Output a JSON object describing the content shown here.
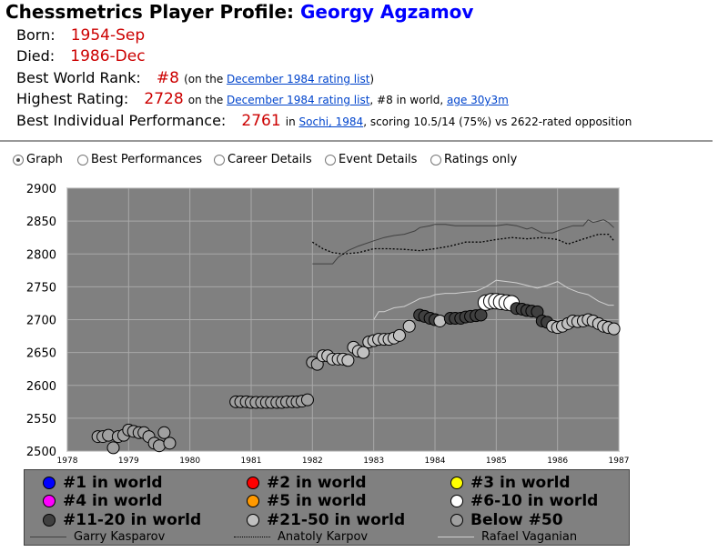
{
  "header": {
    "title_prefix": "Chessmetrics Player Profile: ",
    "player_name": "Georgy Agzamov"
  },
  "facts": {
    "born_label": "Born:",
    "born_value": "1954-Sep",
    "died_label": "Died:",
    "died_value": "1986-Dec",
    "best_rank_label": "Best World Rank:",
    "best_rank_value": "#8",
    "best_rank_note_pre": "(on the ",
    "best_rank_link": "December 1984 rating list",
    "best_rank_note_post": ")",
    "highest_label": "Highest Rating:",
    "highest_value": "2728",
    "highest_note_pre": "on the ",
    "highest_link": "December 1984 rating list",
    "highest_note_mid": ", #8 in world, ",
    "highest_age_link": "age 30y3m",
    "perf_label": "Best Individual Performance:",
    "perf_value": "2761",
    "perf_note_pre": "in ",
    "perf_link": "Sochi, 1984",
    "perf_note_post": ", scoring 10.5/14 (75%) vs 2622-rated opposition"
  },
  "view_options": [
    {
      "label": "Graph",
      "checked": true
    },
    {
      "label": "Best Performances",
      "checked": false
    },
    {
      "label": "Career Details",
      "checked": false
    },
    {
      "label": "Event Details",
      "checked": false
    },
    {
      "label": "Ratings only",
      "checked": false
    }
  ],
  "legend": {
    "rank_items": [
      {
        "label": "#1 in world",
        "color": "#0000ff"
      },
      {
        "label": "#2 in world",
        "color": "#ff0000"
      },
      {
        "label": "#3 in world",
        "color": "#ffff00"
      },
      {
        "label": "#4 in world",
        "color": "#ff00ff"
      },
      {
        "label": "#5 in world",
        "color": "#ff9900"
      },
      {
        "label": "#6-10 in world",
        "color": "#ffffff"
      },
      {
        "label": "#11-20 in world",
        "color": "#404040"
      },
      {
        "label": "#21-50 in world",
        "color": "#c0c0c0"
      },
      {
        "label": "Below #50",
        "color": "#a0a0a0"
      }
    ],
    "line_items": [
      {
        "label": "Garry Kasparov",
        "style": "solid",
        "color": "#404040"
      },
      {
        "label": "Anatoly Karpov",
        "style": "dotted",
        "color": "#000000"
      },
      {
        "label": "Rafael Vaganian",
        "style": "solid",
        "color": "#d0d0d0"
      }
    ]
  },
  "chart_data": {
    "type": "scatter",
    "background": "#808080",
    "grid": true,
    "xlim": [
      1978,
      1987
    ],
    "ylim": [
      2500,
      2900
    ],
    "x_ticks": [
      1978,
      1979,
      1980,
      1981,
      1982,
      1983,
      1984,
      1985,
      1986,
      1987
    ],
    "y_ticks": [
      2500,
      2550,
      2600,
      2650,
      2700,
      2750,
      2800,
      2850,
      2900
    ],
    "points": [
      {
        "x": 1978.5,
        "y": 2522,
        "c": "#a0a0a0"
      },
      {
        "x": 1978.58,
        "y": 2522,
        "c": "#a0a0a0"
      },
      {
        "x": 1978.67,
        "y": 2524,
        "c": "#a0a0a0"
      },
      {
        "x": 1978.75,
        "y": 2505,
        "c": "#a0a0a0"
      },
      {
        "x": 1978.83,
        "y": 2522,
        "c": "#a0a0a0"
      },
      {
        "x": 1978.92,
        "y": 2524,
        "c": "#a0a0a0"
      },
      {
        "x": 1979.0,
        "y": 2532,
        "c": "#a0a0a0"
      },
      {
        "x": 1979.08,
        "y": 2530,
        "c": "#a0a0a0"
      },
      {
        "x": 1979.17,
        "y": 2528,
        "c": "#a0a0a0"
      },
      {
        "x": 1979.25,
        "y": 2528,
        "c": "#a0a0a0"
      },
      {
        "x": 1979.33,
        "y": 2522,
        "c": "#a0a0a0"
      },
      {
        "x": 1979.42,
        "y": 2512,
        "c": "#a0a0a0"
      },
      {
        "x": 1979.5,
        "y": 2508,
        "c": "#a0a0a0"
      },
      {
        "x": 1979.58,
        "y": 2528,
        "c": "#a0a0a0"
      },
      {
        "x": 1979.67,
        "y": 2512,
        "c": "#a0a0a0"
      },
      {
        "x": 1980.75,
        "y": 2575,
        "c": "#a0a0a0"
      },
      {
        "x": 1980.83,
        "y": 2575,
        "c": "#a0a0a0"
      },
      {
        "x": 1980.92,
        "y": 2575,
        "c": "#a0a0a0"
      },
      {
        "x": 1981.0,
        "y": 2574,
        "c": "#a0a0a0"
      },
      {
        "x": 1981.08,
        "y": 2574,
        "c": "#a0a0a0"
      },
      {
        "x": 1981.17,
        "y": 2574,
        "c": "#a0a0a0"
      },
      {
        "x": 1981.25,
        "y": 2574,
        "c": "#a0a0a0"
      },
      {
        "x": 1981.33,
        "y": 2574,
        "c": "#a0a0a0"
      },
      {
        "x": 1981.42,
        "y": 2574,
        "c": "#a0a0a0"
      },
      {
        "x": 1981.5,
        "y": 2574,
        "c": "#a0a0a0"
      },
      {
        "x": 1981.58,
        "y": 2575,
        "c": "#a0a0a0"
      },
      {
        "x": 1981.67,
        "y": 2575,
        "c": "#a0a0a0"
      },
      {
        "x": 1981.75,
        "y": 2575,
        "c": "#a0a0a0"
      },
      {
        "x": 1981.83,
        "y": 2576,
        "c": "#a0a0a0"
      },
      {
        "x": 1981.92,
        "y": 2578,
        "c": "#a0a0a0"
      },
      {
        "x": 1982.0,
        "y": 2635,
        "c": "#a0a0a0"
      },
      {
        "x": 1982.08,
        "y": 2632,
        "c": "#a0a0a0"
      },
      {
        "x": 1982.17,
        "y": 2645,
        "c": "#c0c0c0"
      },
      {
        "x": 1982.25,
        "y": 2645,
        "c": "#c0c0c0"
      },
      {
        "x": 1982.33,
        "y": 2640,
        "c": "#c0c0c0"
      },
      {
        "x": 1982.42,
        "y": 2640,
        "c": "#c0c0c0"
      },
      {
        "x": 1982.5,
        "y": 2640,
        "c": "#c0c0c0"
      },
      {
        "x": 1982.58,
        "y": 2638,
        "c": "#c0c0c0"
      },
      {
        "x": 1982.67,
        "y": 2658,
        "c": "#c0c0c0"
      },
      {
        "x": 1982.75,
        "y": 2652,
        "c": "#c0c0c0"
      },
      {
        "x": 1982.83,
        "y": 2650,
        "c": "#c0c0c0"
      },
      {
        "x": 1982.92,
        "y": 2666,
        "c": "#c0c0c0"
      },
      {
        "x": 1983.0,
        "y": 2668,
        "c": "#c0c0c0"
      },
      {
        "x": 1983.08,
        "y": 2670,
        "c": "#c0c0c0"
      },
      {
        "x": 1983.17,
        "y": 2670,
        "c": "#c0c0c0"
      },
      {
        "x": 1983.25,
        "y": 2670,
        "c": "#c0c0c0"
      },
      {
        "x": 1983.33,
        "y": 2672,
        "c": "#c0c0c0"
      },
      {
        "x": 1983.42,
        "y": 2676,
        "c": "#c0c0c0"
      },
      {
        "x": 1983.58,
        "y": 2690,
        "c": "#c0c0c0"
      },
      {
        "x": 1983.75,
        "y": 2707,
        "c": "#404040"
      },
      {
        "x": 1983.83,
        "y": 2705,
        "c": "#404040"
      },
      {
        "x": 1983.92,
        "y": 2702,
        "c": "#404040"
      },
      {
        "x": 1984.0,
        "y": 2700,
        "c": "#404040"
      },
      {
        "x": 1984.08,
        "y": 2698,
        "c": "#c0c0c0"
      },
      {
        "x": 1984.25,
        "y": 2702,
        "c": "#404040"
      },
      {
        "x": 1984.33,
        "y": 2702,
        "c": "#404040"
      },
      {
        "x": 1984.42,
        "y": 2702,
        "c": "#404040"
      },
      {
        "x": 1984.5,
        "y": 2704,
        "c": "#404040"
      },
      {
        "x": 1984.58,
        "y": 2705,
        "c": "#404040"
      },
      {
        "x": 1984.67,
        "y": 2706,
        "c": "#404040"
      },
      {
        "x": 1984.75,
        "y": 2707,
        "c": "#404040"
      },
      {
        "x": 1984.83,
        "y": 2726,
        "c": "#ffffff"
      },
      {
        "x": 1984.92,
        "y": 2728,
        "c": "#ffffff"
      },
      {
        "x": 1985.0,
        "y": 2728,
        "c": "#ffffff"
      },
      {
        "x": 1985.08,
        "y": 2727,
        "c": "#ffffff"
      },
      {
        "x": 1985.17,
        "y": 2726,
        "c": "#ffffff"
      },
      {
        "x": 1985.25,
        "y": 2725,
        "c": "#ffffff"
      },
      {
        "x": 1985.33,
        "y": 2717,
        "c": "#404040"
      },
      {
        "x": 1985.42,
        "y": 2716,
        "c": "#404040"
      },
      {
        "x": 1985.5,
        "y": 2714,
        "c": "#404040"
      },
      {
        "x": 1985.58,
        "y": 2713,
        "c": "#404040"
      },
      {
        "x": 1985.67,
        "y": 2712,
        "c": "#404040"
      },
      {
        "x": 1985.75,
        "y": 2698,
        "c": "#404040"
      },
      {
        "x": 1985.83,
        "y": 2696,
        "c": "#404040"
      },
      {
        "x": 1985.92,
        "y": 2690,
        "c": "#c0c0c0"
      },
      {
        "x": 1986.0,
        "y": 2688,
        "c": "#c0c0c0"
      },
      {
        "x": 1986.08,
        "y": 2690,
        "c": "#c0c0c0"
      },
      {
        "x": 1986.17,
        "y": 2694,
        "c": "#c0c0c0"
      },
      {
        "x": 1986.25,
        "y": 2698,
        "c": "#c0c0c0"
      },
      {
        "x": 1986.33,
        "y": 2697,
        "c": "#c0c0c0"
      },
      {
        "x": 1986.42,
        "y": 2698,
        "c": "#c0c0c0"
      },
      {
        "x": 1986.5,
        "y": 2700,
        "c": "#c0c0c0"
      },
      {
        "x": 1986.58,
        "y": 2698,
        "c": "#c0c0c0"
      },
      {
        "x": 1986.67,
        "y": 2694,
        "c": "#c0c0c0"
      },
      {
        "x": 1986.75,
        "y": 2690,
        "c": "#c0c0c0"
      },
      {
        "x": 1986.83,
        "y": 2688,
        "c": "#c0c0c0"
      },
      {
        "x": 1986.92,
        "y": 2686,
        "c": "#c0c0c0"
      }
    ],
    "series": [
      {
        "name": "Garry Kasparov",
        "style": "solid",
        "color": "#404040",
        "x": [
          1982.0,
          1982.25,
          1982.33,
          1982.42,
          1982.5,
          1982.58,
          1982.75,
          1983.0,
          1983.17,
          1983.33,
          1983.5,
          1983.67,
          1983.75,
          1983.92,
          1984.0,
          1984.17,
          1984.33,
          1984.5,
          1984.67,
          1984.75,
          1985.0,
          1985.17,
          1985.33,
          1985.5,
          1985.58,
          1985.75,
          1985.92,
          1986.08,
          1986.25,
          1986.42,
          1986.5,
          1986.58,
          1986.67,
          1986.75,
          1986.83,
          1986.92
        ],
        "y": [
          2785,
          2785,
          2785,
          2795,
          2800,
          2805,
          2812,
          2820,
          2825,
          2828,
          2830,
          2835,
          2840,
          2843,
          2845,
          2845,
          2843,
          2843,
          2843,
          2843,
          2843,
          2845,
          2843,
          2838,
          2840,
          2832,
          2832,
          2838,
          2843,
          2843,
          2852,
          2848,
          2850,
          2852,
          2848,
          2840
        ]
      },
      {
        "name": "Anatoly Karpov",
        "style": "dotted",
        "color": "#000000",
        "x": [
          1982.0,
          1982.17,
          1982.33,
          1982.5,
          1982.75,
          1983.0,
          1983.25,
          1983.5,
          1983.75,
          1984.0,
          1984.25,
          1984.5,
          1984.75,
          1985.0,
          1985.25,
          1985.5,
          1985.75,
          1986.0,
          1986.17,
          1986.33,
          1986.5,
          1986.67,
          1986.83,
          1986.92
        ],
        "y": [
          2818,
          2808,
          2802,
          2800,
          2802,
          2808,
          2808,
          2807,
          2805,
          2808,
          2812,
          2818,
          2818,
          2822,
          2825,
          2823,
          2825,
          2822,
          2815,
          2820,
          2825,
          2830,
          2830,
          2820
        ]
      },
      {
        "name": "Rafael Vaganian",
        "style": "solid",
        "color": "#d0d0d0",
        "x": [
          1983.0,
          1983.08,
          1983.17,
          1983.33,
          1983.5,
          1983.67,
          1983.75,
          1983.92,
          1984.0,
          1984.17,
          1984.33,
          1984.5,
          1984.67,
          1984.83,
          1985.0,
          1985.17,
          1985.33,
          1985.5,
          1985.67,
          1985.83,
          1986.0,
          1986.17,
          1986.33,
          1986.5,
          1986.67,
          1986.83,
          1986.92
        ],
        "y": [
          2700,
          2712,
          2712,
          2718,
          2720,
          2728,
          2732,
          2735,
          2738,
          2740,
          2740,
          2742,
          2743,
          2750,
          2760,
          2758,
          2756,
          2752,
          2748,
          2752,
          2758,
          2748,
          2742,
          2738,
          2728,
          2722,
          2722
        ]
      }
    ]
  }
}
